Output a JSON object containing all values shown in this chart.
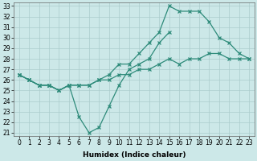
{
  "xlabel": "Humidex (Indice chaleur)",
  "x": [
    0,
    1,
    2,
    3,
    4,
    5,
    6,
    7,
    8,
    9,
    10,
    11,
    12,
    13,
    14,
    15,
    16,
    17,
    18,
    19,
    20,
    21,
    22,
    23
  ],
  "line_top": [
    26.5,
    26.0,
    25.5,
    25.5,
    25.0,
    25.5,
    25.5,
    25.5,
    26.0,
    26.5,
    27.5,
    27.5,
    28.5,
    29.5,
    30.5,
    33.0,
    32.5,
    32.5,
    32.5,
    31.5,
    30.0,
    29.5,
    28.5,
    28.0
  ],
  "line_dip": [
    26.5,
    26.0,
    25.5,
    25.5,
    25.0,
    25.5,
    22.5,
    21.0,
    21.5,
    23.5,
    25.5,
    27.0,
    27.5,
    28.0,
    29.5,
    30.5,
    null,
    null,
    null,
    null,
    null,
    null,
    null,
    null
  ],
  "line_low": [
    26.5,
    26.0,
    25.5,
    25.5,
    25.0,
    25.5,
    25.5,
    25.5,
    26.0,
    26.0,
    26.5,
    26.5,
    27.0,
    27.0,
    27.5,
    28.0,
    27.5,
    28.0,
    28.0,
    28.5,
    28.5,
    28.0,
    28.0,
    28.0
  ],
  "color": "#2e8b7a",
  "bg_color": "#cce8e8",
  "grid_color": "#aacccc",
  "ylim_min": 21,
  "ylim_max": 33,
  "yticks": [
    21,
    22,
    23,
    24,
    25,
    26,
    27,
    28,
    29,
    30,
    31,
    32,
    33
  ],
  "xlim_min": -0.5,
  "xlim_max": 23.5,
  "tick_fontsize": 5.5,
  "xlabel_fontsize": 6.5
}
